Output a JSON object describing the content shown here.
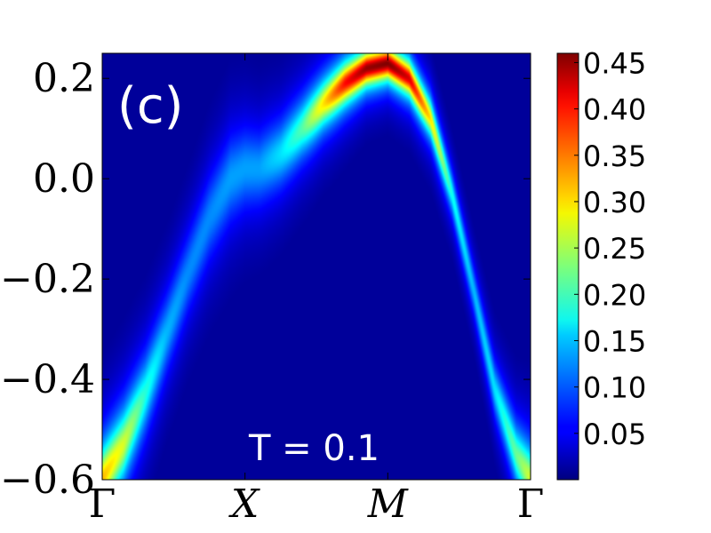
{
  "chart_data": {
    "type": "heatmap",
    "panel_label": "(c)",
    "annotation": "T = 0.1",
    "title": "",
    "xlabel": "",
    "ylabel": "",
    "x_tick_labels": [
      "Γ",
      "X",
      "M",
      "Γ"
    ],
    "x_tick_positions": [
      0,
      1,
      2,
      3
    ],
    "xlim": [
      0,
      3
    ],
    "ylim": [
      -0.6,
      0.25
    ],
    "y_ticks": [
      0.2,
      0.0,
      -0.2,
      -0.4,
      -0.6
    ],
    "y_tick_labels": [
      "0.2",
      "0.0",
      "−0.2",
      "−0.4",
      "−0.6"
    ],
    "colorbar": {
      "colormap": "jet",
      "range": [
        0.0,
        0.46
      ],
      "ticks": [
        0.05,
        0.1,
        0.15,
        0.2,
        0.25,
        0.3,
        0.35,
        0.4,
        0.45
      ],
      "tick_labels": [
        "0.05",
        "0.10",
        "0.15",
        "0.20",
        "0.25",
        "0.30",
        "0.35",
        "0.40",
        "0.45"
      ]
    },
    "band": {
      "k": [
        0.0,
        0.15,
        0.3,
        0.45,
        0.6,
        0.75,
        0.9,
        1.0,
        1.1,
        1.25,
        1.4,
        1.55,
        1.7,
        1.85,
        2.0,
        2.15,
        2.3,
        2.45,
        2.6,
        2.75,
        2.9,
        3.0
      ],
      "energy": [
        -0.6,
        -0.53,
        -0.43,
        -0.31,
        -0.19,
        -0.08,
        0.0,
        0.02,
        0.02,
        0.05,
        0.1,
        0.15,
        0.19,
        0.22,
        0.23,
        0.2,
        0.12,
        -0.03,
        -0.22,
        -0.42,
        -0.55,
        -0.6
      ],
      "intensity": [
        0.32,
        0.27,
        0.19,
        0.14,
        0.12,
        0.12,
        0.13,
        0.13,
        0.13,
        0.16,
        0.21,
        0.3,
        0.4,
        0.45,
        0.46,
        0.42,
        0.3,
        0.18,
        0.14,
        0.16,
        0.22,
        0.27
      ],
      "width": [
        0.06,
        0.065,
        0.07,
        0.075,
        0.08,
        0.085,
        0.085,
        0.08,
        0.075,
        0.065,
        0.055,
        0.045,
        0.038,
        0.032,
        0.03,
        0.032,
        0.036,
        0.04,
        0.045,
        0.05,
        0.055,
        0.06
      ]
    }
  }
}
